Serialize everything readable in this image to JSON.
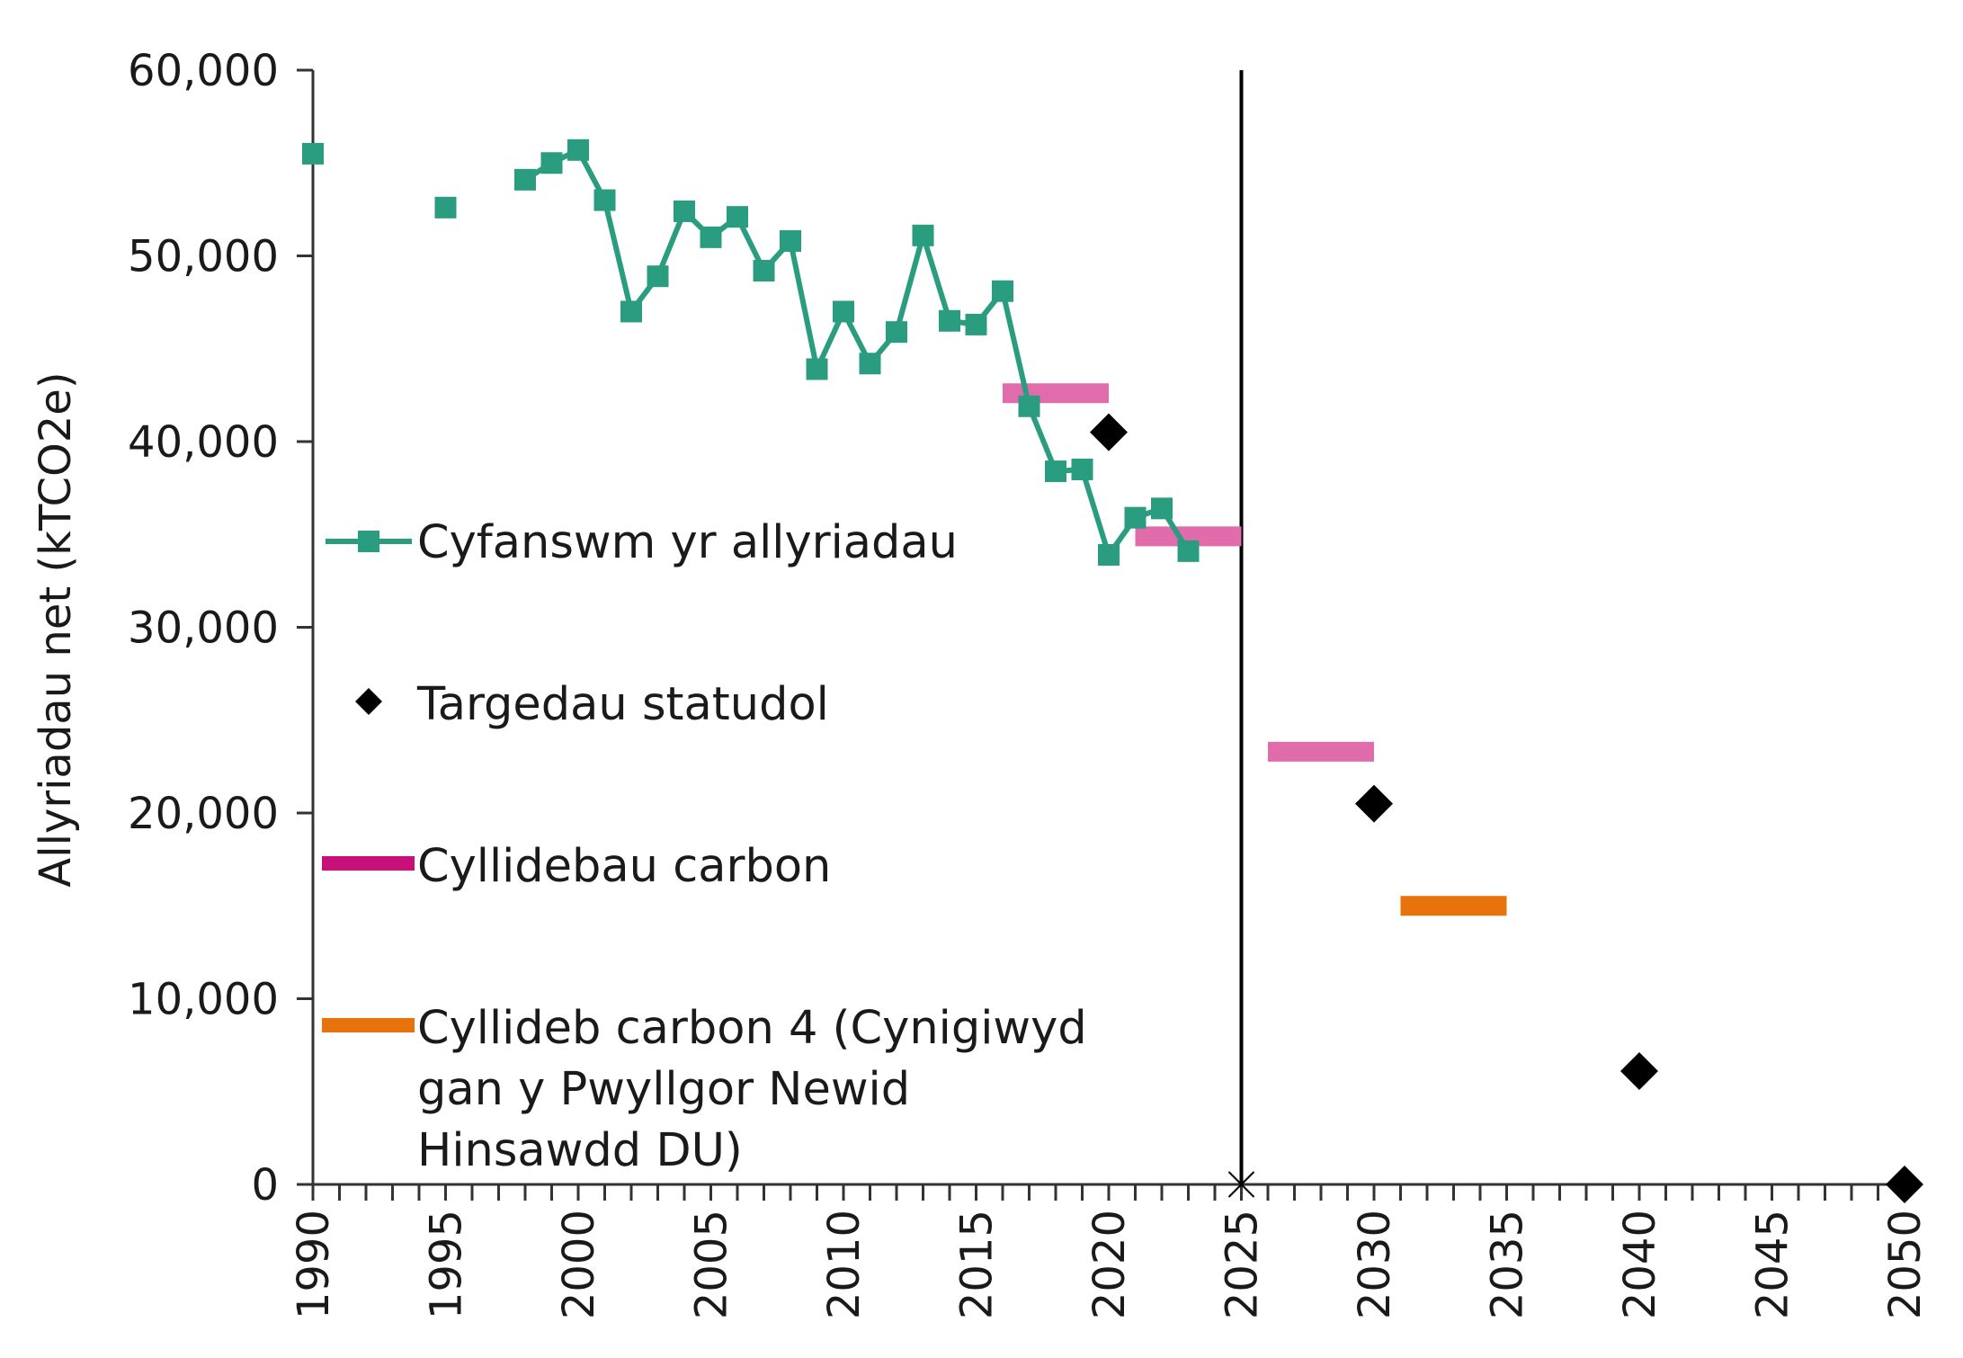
{
  "chart_data": {
    "type": "line",
    "title": "",
    "ylabel": "Allyriadau net (kTCO2e)",
    "xlabel": "",
    "xlim": [
      1990,
      2050
    ],
    "ylim": [
      0,
      60000
    ],
    "y_ticks": [
      {
        "value": 0,
        "label": "0"
      },
      {
        "value": 10000,
        "label": "10,000"
      },
      {
        "value": 20000,
        "label": "20,000"
      },
      {
        "value": 30000,
        "label": "30,000"
      },
      {
        "value": 40000,
        "label": "40,000"
      },
      {
        "value": 50000,
        "label": "50,000"
      },
      {
        "value": 60000,
        "label": "60,000"
      }
    ],
    "x_ticks": [
      {
        "value": 1990,
        "label": "1990"
      },
      {
        "value": 1995,
        "label": "1995"
      },
      {
        "value": 2000,
        "label": "2000"
      },
      {
        "value": 2005,
        "label": "2005"
      },
      {
        "value": 2010,
        "label": "2010"
      },
      {
        "value": 2015,
        "label": "2015"
      },
      {
        "value": 2020,
        "label": "2020"
      },
      {
        "value": 2025,
        "label": "2025"
      },
      {
        "value": 2030,
        "label": "2030"
      },
      {
        "value": 2035,
        "label": "2035"
      },
      {
        "value": 2040,
        "label": "2040"
      },
      {
        "value": 2045,
        "label": "2045"
      },
      {
        "value": 2050,
        "label": "2050"
      }
    ],
    "vertical_line_x": 2025,
    "series": [
      {
        "name": "Cyfanswm yr allyriadau",
        "kind": "line-markers",
        "color": "#2a9d80",
        "marker": "square",
        "points": [
          {
            "x": 1990,
            "y": 55500
          },
          {
            "x": 1995,
            "y": 52600
          },
          {
            "x": 1998,
            "y": 54100
          },
          {
            "x": 1999,
            "y": 55000
          },
          {
            "x": 2000,
            "y": 55700
          },
          {
            "x": 2001,
            "y": 53000
          },
          {
            "x": 2002,
            "y": 47000
          },
          {
            "x": 2003,
            "y": 48900
          },
          {
            "x": 2004,
            "y": 52400
          },
          {
            "x": 2005,
            "y": 51000
          },
          {
            "x": 2006,
            "y": 52100
          },
          {
            "x": 2007,
            "y": 49200
          },
          {
            "x": 2008,
            "y": 50800
          },
          {
            "x": 2009,
            "y": 43900
          },
          {
            "x": 2010,
            "y": 47000
          },
          {
            "x": 2011,
            "y": 44200
          },
          {
            "x": 2012,
            "y": 45900
          },
          {
            "x": 2013,
            "y": 51100
          },
          {
            "x": 2014,
            "y": 46500
          },
          {
            "x": 2015,
            "y": 46300
          },
          {
            "x": 2016,
            "y": 48100
          },
          {
            "x": 2017,
            "y": 41900
          },
          {
            "x": 2018,
            "y": 38400
          },
          {
            "x": 2019,
            "y": 38500
          },
          {
            "x": 2020,
            "y": 33900
          },
          {
            "x": 2021,
            "y": 35900
          },
          {
            "x": 2022,
            "y": 36400
          },
          {
            "x": 2023,
            "y": 34100
          }
        ]
      },
      {
        "name": "Targedau statudol",
        "kind": "markers",
        "color": "#000000",
        "marker": "diamond",
        "points": [
          {
            "x": 2020,
            "y": 40500
          },
          {
            "x": 2030,
            "y": 20500
          },
          {
            "x": 2040,
            "y": 6100
          },
          {
            "x": 2050,
            "y": 0
          }
        ]
      },
      {
        "name": "Cyllidebau carbon",
        "kind": "segments",
        "color": "#e06cab",
        "legend_color": "#c8107a",
        "segments": [
          {
            "x0": 2016,
            "x1": 2020,
            "y": 42600
          },
          {
            "x0": 2021,
            "x1": 2025,
            "y": 34900
          },
          {
            "x0": 2026,
            "x1": 2030,
            "y": 23300
          }
        ]
      },
      {
        "name": "Cyllideb carbon 4 (Cynigiwyd gan y Pwyllgor Newid Hinsawdd DU)",
        "legend_lines": [
          "Cyllideb carbon 4 (Cynigiwyd",
          "gan y Pwyllgor Newid",
          "Hinsawdd DU)"
        ],
        "kind": "segments",
        "color": "#e8720c",
        "legend_color": "#e8720c",
        "segments": [
          {
            "x0": 2031,
            "x1": 2035,
            "y": 15000
          }
        ]
      }
    ],
    "legend_position": "inside-left",
    "grid": false
  }
}
